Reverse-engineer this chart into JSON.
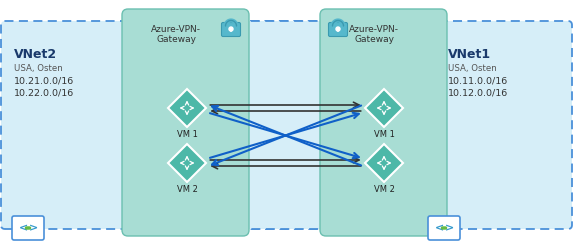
{
  "fig_width": 5.73,
  "fig_height": 2.47,
  "dpi": 100,
  "bg_color": "#ffffff",
  "light_blue_bg": "#d6eef8",
  "teal_bg": "#a8ddd4",
  "teal_dark": "#6bbfb0",
  "border_blue": "#4a90d9",
  "left_vnet": {
    "label": "VNet2",
    "sublabel": "USA, Osten",
    "ip1": "10.21.0.0/16",
    "ip2": "10.22.0.0/16"
  },
  "right_vnet": {
    "label": "VNet1",
    "sublabel": "USA, Osten",
    "ip1": "10.11.0.0/16",
    "ip2": "10.12.0.0/16"
  },
  "gateway_label": "Azure-VPN-\nGateway",
  "vm1_label": "VM 1",
  "vm2_label": "VM 2",
  "arrow_black": "#333333",
  "arrow_blue": "#1060c8"
}
